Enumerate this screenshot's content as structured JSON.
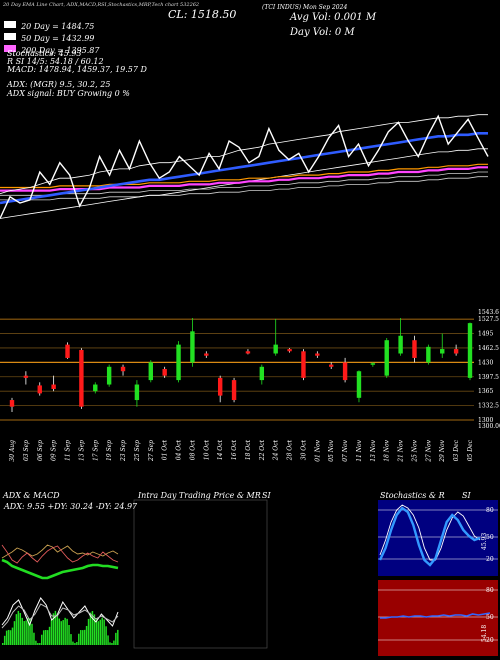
{
  "header": {
    "line1_left": "20 Day EMA Line Chart, ADX,MACD,RSI,Stochastics,MRP,Tech chart 532262",
    "close": "CL: 1518.50",
    "company": "(TCI INDUS) Mon Sep 2024",
    "avg_vol": "Avg Vol: 0.001 M",
    "day_vol": "Day Vol: 0   M",
    "ema20": "20  Day = 1484.75",
    "ema50": "50  Day = 1432.99",
    "ema200": "200  Day = 1395.87",
    "stoch": "Stochastics: 45.93",
    "rsi": "R                SI 14/5: 54.18 / 60.12",
    "macd": "MACD: 1478.94,  1459.37,  19.57 D",
    "adx": "ADX:                               (MGR) 9.5,  30.2,  25",
    "adx_signal": "ADX  signal:                                        BUY Growing 0 %"
  },
  "legend_colors": {
    "ema20": "#ffffff",
    "ema50": "#4f6cff",
    "ema200": "#ff66ff"
  },
  "price_axis": [
    "1543.6",
    "1527.5",
    "1495",
    "1462.5",
    "1430",
    "1397.5",
    "1365",
    "1332.5",
    "1300",
    "1300.00"
  ],
  "x_dates": [
    "30 Aug",
    "03 Sep",
    "06 Sep",
    "09 Sep",
    "11 Sep",
    "13 Sep",
    "17 Sep",
    "19 Sep",
    "23 Sep",
    "25 Sep",
    "27 Sep",
    "01 Oct",
    "04 Oct",
    "08 Oct",
    "10 Oct",
    "14 Oct",
    "16 Oct",
    "18 Oct",
    "22 Oct",
    "24 Oct",
    "28 Oct",
    "30 Oct",
    "01 Nov",
    "05 Nov",
    "07 Nov",
    "11 Nov",
    "13 Nov",
    "18 Nov",
    "21 Nov",
    "25 Nov",
    "27 Nov",
    "29 Nov",
    "03 Dec",
    "05 Dec"
  ],
  "panels": {
    "adx_title": "ADX  & MACD",
    "adx_values": "ADX: 9.55  +DY: 30.24  -DY: 24.97",
    "intra_title": "Intra  Day Trading Price  & MR",
    "intra_si": "SI",
    "stoch_title": "Stochastics & R",
    "stoch_si": "SI",
    "stoch_axis": [
      "80",
      "50",
      "20"
    ],
    "stoch_value": "45.93",
    "rsi_axis": [
      "80",
      "50",
      "20"
    ],
    "rsi_value": "54.18"
  },
  "chart_data": {
    "type": "candlestick",
    "title": "",
    "ylim": [
      1300,
      1543.6
    ],
    "categories": [
      "30 Aug",
      "03 Sep",
      "06 Sep",
      "09 Sep",
      "11 Sep",
      "13 Sep",
      "17 Sep",
      "19 Sep",
      "23 Sep",
      "25 Sep",
      "27 Sep",
      "01 Oct",
      "04 Oct",
      "08 Oct",
      "10 Oct",
      "14 Oct",
      "16 Oct",
      "18 Oct",
      "22 Oct",
      "24 Oct",
      "28 Oct",
      "30 Oct",
      "01 Nov",
      "05 Nov",
      "07 Nov",
      "11 Nov",
      "13 Nov",
      "18 Nov",
      "21 Nov",
      "25 Nov",
      "27 Nov",
      "29 Nov",
      "03 Dec",
      "05 Dec"
    ],
    "candles": [
      {
        "o": 1345,
        "c": 1330,
        "h": 1350,
        "l": 1318,
        "up": false
      },
      {
        "o": 1400,
        "c": 1395,
        "h": 1410,
        "l": 1380,
        "up": false
      },
      {
        "o": 1378,
        "c": 1360,
        "h": 1385,
        "l": 1355,
        "up": false
      },
      {
        "o": 1380,
        "c": 1370,
        "h": 1400,
        "l": 1365,
        "up": false
      },
      {
        "o": 1470,
        "c": 1440,
        "h": 1475,
        "l": 1438,
        "up": false
      },
      {
        "o": 1458,
        "c": 1330,
        "h": 1462,
        "l": 1325,
        "up": false
      },
      {
        "o": 1365,
        "c": 1380,
        "h": 1385,
        "l": 1360,
        "up": true
      },
      {
        "o": 1380,
        "c": 1420,
        "h": 1425,
        "l": 1375,
        "up": true
      },
      {
        "o": 1420,
        "c": 1410,
        "h": 1425,
        "l": 1400,
        "up": false
      },
      {
        "o": 1345,
        "c": 1380,
        "h": 1390,
        "l": 1330,
        "up": true
      },
      {
        "o": 1390,
        "c": 1430,
        "h": 1435,
        "l": 1385,
        "up": true
      },
      {
        "o": 1415,
        "c": 1400,
        "h": 1420,
        "l": 1395,
        "up": false
      },
      {
        "o": 1390,
        "c": 1470,
        "h": 1478,
        "l": 1385,
        "up": true
      },
      {
        "o": 1430,
        "c": 1500,
        "h": 1530,
        "l": 1420,
        "up": true
      },
      {
        "o": 1450,
        "c": 1445,
        "h": 1455,
        "l": 1440,
        "up": false
      },
      {
        "o": 1395,
        "c": 1355,
        "h": 1400,
        "l": 1340,
        "up": false
      },
      {
        "o": 1390,
        "c": 1345,
        "h": 1395,
        "l": 1340,
        "up": false
      },
      {
        "o": 1455,
        "c": 1450,
        "h": 1460,
        "l": 1448,
        "up": false
      },
      {
        "o": 1390,
        "c": 1420,
        "h": 1425,
        "l": 1380,
        "up": true
      },
      {
        "o": 1450,
        "c": 1470,
        "h": 1528,
        "l": 1445,
        "up": true
      },
      {
        "o": 1460,
        "c": 1455,
        "h": 1462,
        "l": 1452,
        "up": false
      },
      {
        "o": 1455,
        "c": 1395,
        "h": 1460,
        "l": 1390,
        "up": false
      },
      {
        "o": 1450,
        "c": 1445,
        "h": 1455,
        "l": 1440,
        "up": false
      },
      {
        "o": 1425,
        "c": 1420,
        "h": 1430,
        "l": 1415,
        "up": false
      },
      {
        "o": 1430,
        "c": 1390,
        "h": 1440,
        "l": 1385,
        "up": false
      },
      {
        "o": 1350,
        "c": 1410,
        "h": 1412,
        "l": 1340,
        "up": true
      },
      {
        "o": 1425,
        "c": 1428,
        "h": 1430,
        "l": 1420,
        "up": true
      },
      {
        "o": 1400,
        "c": 1480,
        "h": 1485,
        "l": 1395,
        "up": true
      },
      {
        "o": 1450,
        "c": 1490,
        "h": 1530,
        "l": 1445,
        "up": true
      },
      {
        "o": 1480,
        "c": 1440,
        "h": 1490,
        "l": 1430,
        "up": false
      },
      {
        "o": 1430,
        "c": 1465,
        "h": 1470,
        "l": 1425,
        "up": true
      },
      {
        "o": 1450,
        "c": 1460,
        "h": 1495,
        "l": 1440,
        "up": true
      },
      {
        "o": 1460,
        "c": 1450,
        "h": 1470,
        "l": 1445,
        "up": false
      },
      {
        "o": 1395,
        "c": 1518.5,
        "h": 1520,
        "l": 1390,
        "up": true
      }
    ],
    "price_line": [
      30,
      44,
      40,
      42,
      60,
      52,
      66,
      58,
      38,
      50,
      70,
      58,
      74,
      62,
      80,
      66,
      56,
      60,
      70,
      64,
      58,
      72,
      62,
      80,
      76,
      66,
      70,
      88,
      74,
      68,
      72,
      60,
      70,
      82,
      90,
      70,
      78,
      64,
      74,
      86,
      92,
      80,
      70,
      84,
      96,
      78,
      86,
      94,
      82,
      70
    ],
    "ema20_line": [
      42,
      44,
      45,
      46,
      48,
      50,
      52,
      52,
      53,
      54,
      56,
      57,
      58,
      58,
      60,
      61,
      62,
      62,
      63,
      64,
      65,
      66,
      66,
      68,
      70,
      71,
      72,
      74,
      75,
      76,
      77,
      78,
      79,
      80,
      82,
      83,
      84,
      85,
      86,
      87,
      88,
      88,
      89,
      90,
      91,
      91,
      92,
      92,
      93,
      93
    ],
    "ema50_line": [
      40,
      41,
      42,
      43,
      44,
      45,
      46,
      47,
      48,
      49,
      50,
      51,
      52,
      53,
      54,
      55,
      55,
      56,
      57,
      58,
      59,
      60,
      61,
      62,
      63,
      64,
      65,
      66,
      67,
      68,
      69,
      70,
      71,
      72,
      73,
      74,
      75,
      76,
      77,
      78,
      79,
      80,
      81,
      82,
      83,
      83,
      84,
      84,
      85,
      85
    ],
    "ema200_line": [
      48,
      48,
      48,
      48,
      48,
      48,
      49,
      49,
      49,
      49,
      49,
      50,
      50,
      50,
      50,
      51,
      51,
      51,
      51,
      52,
      52,
      52,
      53,
      53,
      53,
      54,
      54,
      54,
      55,
      55,
      56,
      56,
      56,
      57,
      57,
      58,
      58,
      58,
      59,
      59,
      60,
      60,
      60,
      61,
      61,
      62,
      62,
      62,
      63,
      63
    ]
  }
}
